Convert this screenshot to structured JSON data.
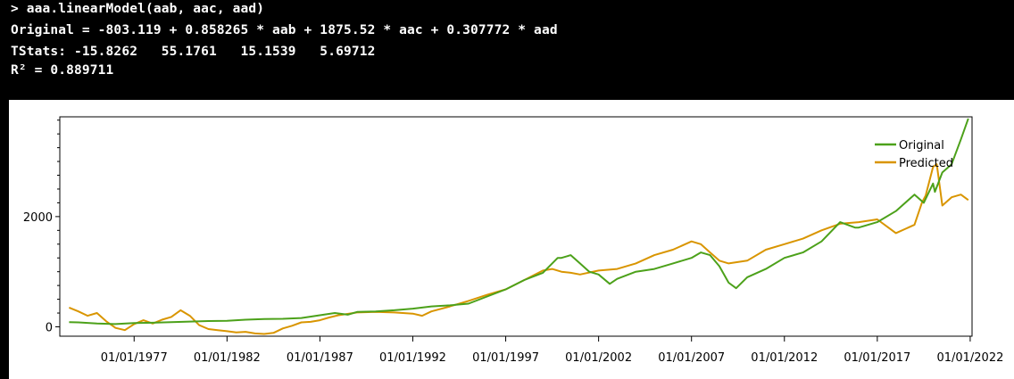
{
  "console": {
    "lines": [
      "> aaa.linearModel(aab, aac, aad)",
      "Original = -803.119 + 0.858265 * aab + 1875.52 * aac + 0.307772 * aad",
      "TStats: -15.8262   55.1761   15.1539   5.69712",
      "R² = 0.889711"
    ]
  },
  "colors": {
    "original": "#4ca11a",
    "predicted": "#d99500",
    "background": "#000000",
    "panel": "#ffffff"
  },
  "chart_data": {
    "type": "line",
    "title": "",
    "xlabel": "",
    "ylabel": "",
    "xlim": [
      1973.0,
      2022.1
    ],
    "ylim": [
      -170,
      3810
    ],
    "x_ticks": [
      "01/01/1977",
      "01/01/1982",
      "01/01/1987",
      "01/01/1992",
      "01/01/1997",
      "01/01/2002",
      "01/01/2007",
      "01/01/2012",
      "01/01/2017",
      "01/01/2022"
    ],
    "y_ticks": [
      "0",
      "2000"
    ],
    "legend": {
      "position": "top-right",
      "entries": [
        "Original",
        "Predicted"
      ]
    },
    "grid": false,
    "series": [
      {
        "name": "Original",
        "x": [
          1973.5,
          1974,
          1975,
          1976,
          1977,
          1978,
          1979,
          1980,
          1981,
          1982,
          1983,
          1984,
          1985,
          1986,
          1987,
          1987.8,
          1988.5,
          1989,
          1990,
          1991,
          1992,
          1993,
          1994,
          1995,
          1996,
          1997,
          1998,
          1999,
          1999.8,
          2000,
          2000.5,
          2001,
          2001.5,
          2002,
          2002.6,
          2003,
          2004,
          2005,
          2006,
          2007,
          2007.5,
          2008,
          2008.5,
          2009,
          2009.4,
          2010,
          2011,
          2012,
          2013,
          2014,
          2015,
          2015.8,
          2016,
          2017,
          2018,
          2019,
          2019.5,
          2020,
          2020.1,
          2020.5,
          2021,
          2021.5,
          2021.9
        ],
        "y": [
          85,
          80,
          60,
          50,
          70,
          75,
          85,
          95,
          105,
          110,
          130,
          140,
          145,
          160,
          210,
          250,
          220,
          270,
          280,
          300,
          330,
          370,
          390,
          420,
          550,
          680,
          850,
          980,
          1250,
          1250,
          1300,
          1150,
          1000,
          950,
          780,
          870,
          1000,
          1050,
          1150,
          1250,
          1350,
          1300,
          1100,
          800,
          700,
          900,
          1050,
          1250,
          1350,
          1550,
          1900,
          1800,
          1800,
          1900,
          2100,
          2400,
          2250,
          2600,
          2450,
          2800,
          2950,
          3400,
          3780
        ]
      },
      {
        "name": "Predicted",
        "x": [
          1973.5,
          1974,
          1974.5,
          1975,
          1975.5,
          1976,
          1976.5,
          1977,
          1977.5,
          1978,
          1978.5,
          1979,
          1979.5,
          1980,
          1980.5,
          1981,
          1981.5,
          1982,
          1982.5,
          1983,
          1983.5,
          1984,
          1984.5,
          1985,
          1985.5,
          1986,
          1986.5,
          1987,
          1987.5,
          1988,
          1989,
          1990,
          1991,
          1992,
          1992.5,
          1993,
          1994,
          1995,
          1996,
          1997,
          1998,
          1999,
          1999.5,
          2000,
          2000.5,
          2001,
          2002,
          2003,
          2004,
          2005,
          2006,
          2007,
          2007.5,
          2008,
          2008.5,
          2009,
          2010,
          2011,
          2012,
          2013,
          2014,
          2015,
          2016,
          2017,
          2018,
          2019,
          2019.4,
          2019.6,
          2020,
          2020.2,
          2020.5,
          2021,
          2021.5,
          2021.9
        ],
        "y": [
          350,
          280,
          200,
          250,
          100,
          -20,
          -60,
          50,
          120,
          60,
          130,
          180,
          300,
          200,
          30,
          -40,
          -60,
          -80,
          -100,
          -90,
          -120,
          -130,
          -110,
          -30,
          20,
          80,
          90,
          120,
          170,
          210,
          260,
          270,
          260,
          240,
          200,
          280,
          370,
          470,
          580,
          680,
          850,
          1020,
          1050,
          1000,
          980,
          950,
          1020,
          1050,
          1150,
          1300,
          1400,
          1550,
          1500,
          1350,
          1200,
          1150,
          1200,
          1400,
          1500,
          1600,
          1750,
          1870,
          1900,
          1950,
          1700,
          1850,
          2250,
          2380,
          2900,
          2950,
          2200,
          2350,
          2400,
          2300
        ]
      }
    ]
  }
}
